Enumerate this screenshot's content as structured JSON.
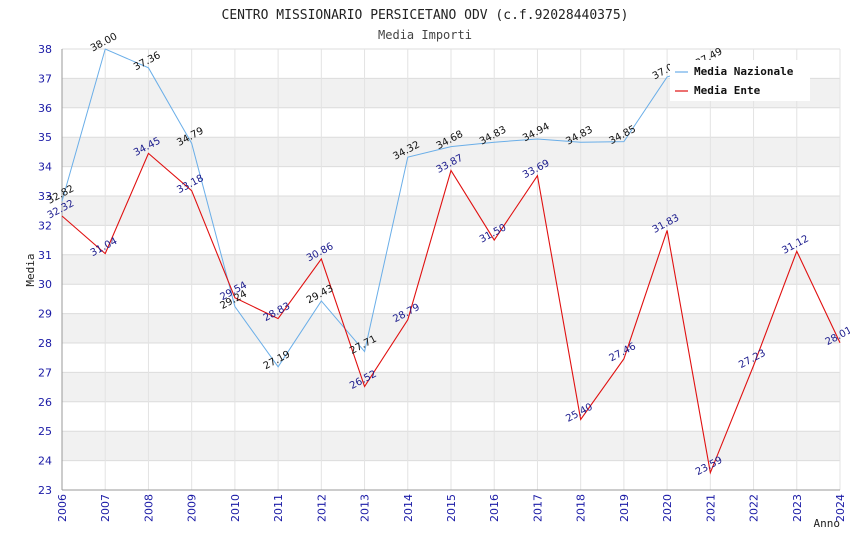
{
  "chart_data": {
    "type": "line",
    "title": "CENTRO MISSIONARIO PERSICETANO ODV (c.f.92028440375)",
    "subtitle": "Media Importi",
    "xlabel": "Anno",
    "ylabel": "Media",
    "ylim": [
      23,
      38
    ],
    "yticks": [
      "23",
      "24",
      "25",
      "26",
      "27",
      "28",
      "29",
      "30",
      "31",
      "32",
      "33",
      "34",
      "35",
      "36",
      "37",
      "38"
    ],
    "x": [
      "2006",
      "2007",
      "2008",
      "2009",
      "2010",
      "2011",
      "2012",
      "2013",
      "2014",
      "2015",
      "2016",
      "2017",
      "2018",
      "2019",
      "2020",
      "2021",
      "2022",
      "2023",
      "2024"
    ],
    "series": [
      {
        "name": "Media Nazionale",
        "color": "#6aaee8",
        "values": [
          32.82,
          38.0,
          37.36,
          34.79,
          29.24,
          27.19,
          29.43,
          27.71,
          34.32,
          34.68,
          34.83,
          34.94,
          34.83,
          34.85,
          37.05,
          37.49,
          null,
          null,
          null
        ],
        "labels": [
          "32.82",
          "38.00",
          "37.36",
          "34.79",
          "29.24",
          "27.19",
          "29.43",
          "27.71",
          "34.32",
          "34.68",
          "34.83",
          "34.94",
          "34.83",
          "34.85",
          "37.05",
          "37.49",
          "",
          "",
          ""
        ]
      },
      {
        "name": "Media Ente",
        "color": "#e01010",
        "values": [
          32.32,
          31.04,
          34.45,
          33.18,
          29.54,
          28.83,
          30.86,
          26.52,
          28.79,
          33.87,
          31.5,
          33.69,
          25.4,
          27.46,
          31.83,
          23.59,
          27.23,
          31.12,
          28.01
        ],
        "labels": [
          "32.32",
          "31.04",
          "34.45",
          "33.18",
          "29.54",
          "28.83",
          "30.86",
          "26.52",
          "28.79",
          "33.87",
          "31.50",
          "33.69",
          "25.40",
          "27.46",
          "31.83",
          "23.59",
          "27.23",
          "31.12",
          "28.01"
        ]
      }
    ],
    "legend": {
      "position": "top-right",
      "items": [
        "Media Nazionale",
        "Media Ente"
      ]
    },
    "grid": true
  }
}
